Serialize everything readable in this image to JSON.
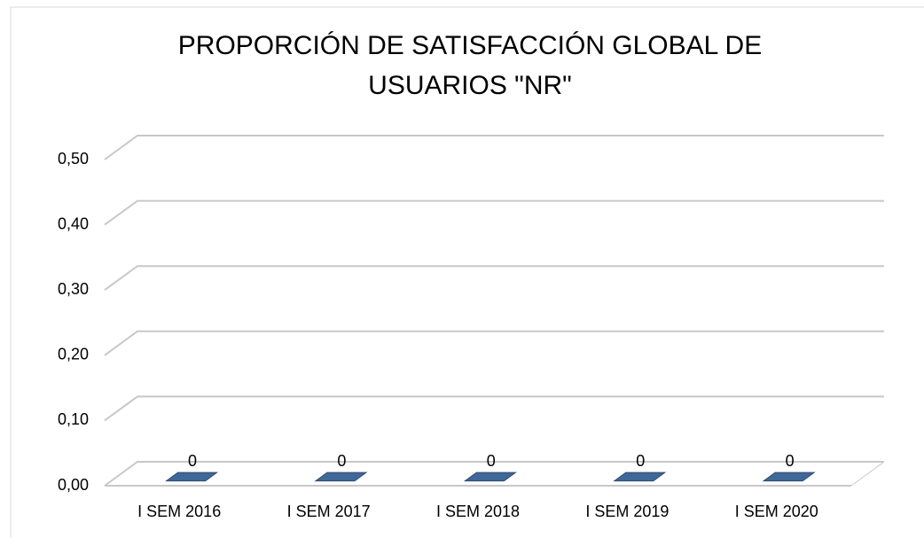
{
  "chart_data": {
    "type": "bar3d",
    "title": "PROPORCIÓN DE SATISFACCIÓN GLOBAL DE USUARIOS \"NR\"",
    "title_lines": [
      "PROPORCIÓN DE SATISFACCIÓN GLOBAL DE",
      "USUARIOS \"NR\""
    ],
    "categories": [
      "I SEM 2016",
      "I SEM 2017",
      "I SEM 2018",
      "I SEM 2019",
      "I SEM 2020"
    ],
    "values": [
      0,
      0,
      0,
      0,
      0
    ],
    "color": "#3f6898",
    "ylim": [
      0,
      0.5
    ],
    "yticks": [
      {
        "value": 0,
        "label": "0,00"
      },
      {
        "value": 0.1,
        "label": "0,10"
      },
      {
        "value": 0.2,
        "label": "0,20"
      },
      {
        "value": 0.3,
        "label": "0,30"
      },
      {
        "value": 0.4,
        "label": "0,40"
      },
      {
        "value": 0.5,
        "label": "0,50"
      }
    ],
    "grid": true
  }
}
